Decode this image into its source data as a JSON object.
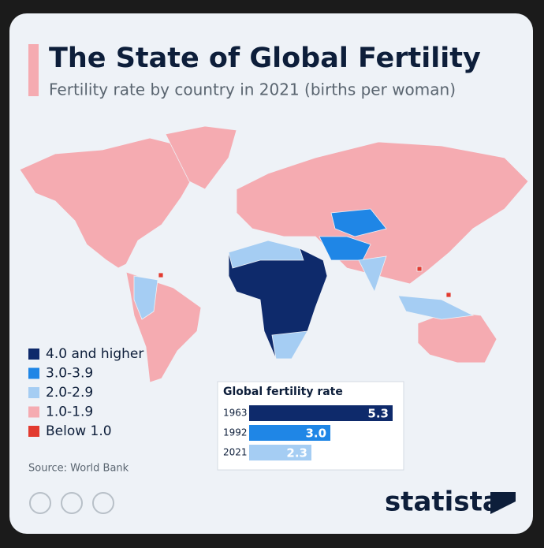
{
  "header": {
    "title": "The State of Global Fertility",
    "subtitle": "Fertility rate by country in 2021 (births per woman)"
  },
  "legend": [
    {
      "label": "4.0 and higher",
      "color": "#0e2a6b"
    },
    {
      "label": "3.0-3.9",
      "color": "#1f86e6"
    },
    {
      "label": "2.0-2.9",
      "color": "#a5cdf3"
    },
    {
      "label": "1.0-1.9",
      "color": "#f5abb1"
    },
    {
      "label": "Below 1.0",
      "color": "#e23a2f"
    }
  ],
  "chart_data": {
    "type": "bar",
    "orientation": "horizontal",
    "title": "Global fertility rate",
    "categories": [
      "1963",
      "1992",
      "2021"
    ],
    "values": [
      5.3,
      3.0,
      2.3
    ],
    "value_labels": [
      "5.3",
      "3.0",
      "2.3"
    ],
    "colors": [
      "#0e2a6b",
      "#1f86e6",
      "#a5cdf3"
    ]
  },
  "source": "Source: World Bank",
  "brand": "statista"
}
